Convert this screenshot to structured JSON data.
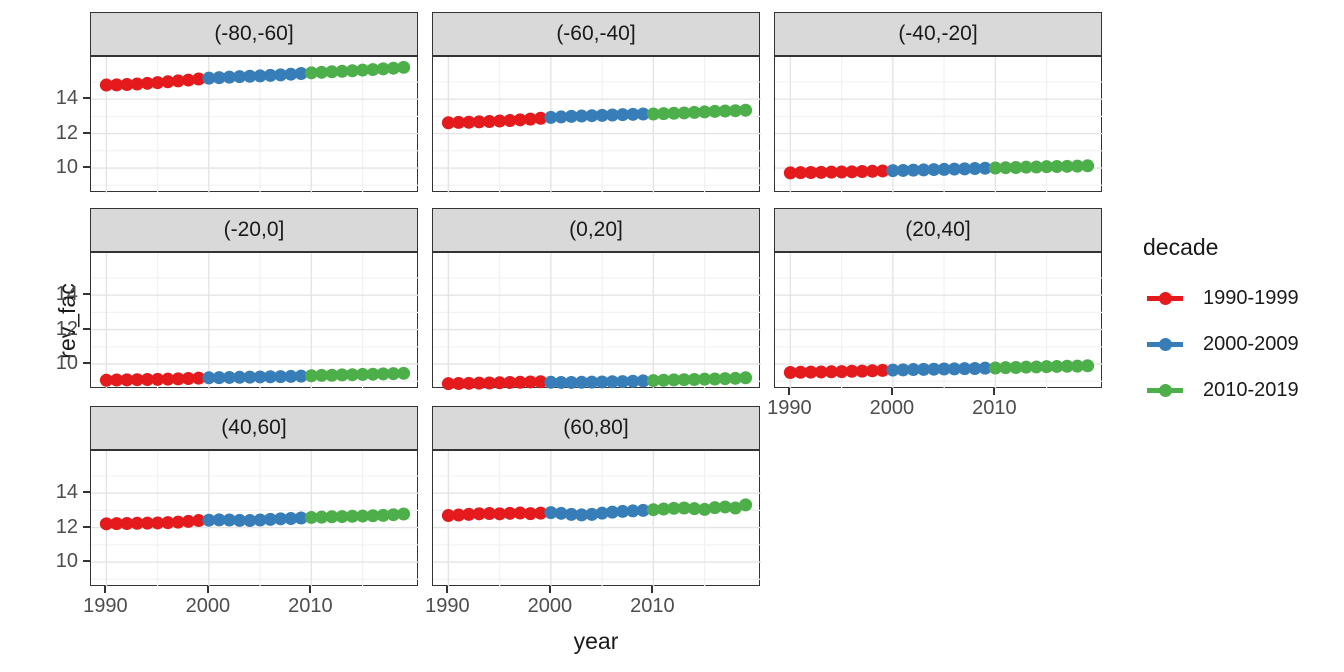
{
  "chart": {
    "y_axis_title": "rev_fac",
    "x_axis_title": "year",
    "legend": {
      "title": "decade",
      "entries": [
        {
          "label": "1990-1999",
          "color": "#E41A1C"
        },
        {
          "label": "2000-2009",
          "color": "#377EB8"
        },
        {
          "label": "2010-2019",
          "color": "#4DAF4A"
        }
      ]
    }
  },
  "chart_data": {
    "type": "scatter",
    "title": "",
    "xlabel": "year",
    "ylabel": "rev_fac",
    "legend_title": "decade",
    "legend_position": "right",
    "grid": true,
    "facet_layout": {
      "ncol": 3,
      "nrow": 3
    },
    "x": [
      1990,
      1991,
      1992,
      1993,
      1994,
      1995,
      1996,
      1997,
      1998,
      1999,
      2000,
      2001,
      2002,
      2003,
      2004,
      2005,
      2006,
      2007,
      2008,
      2009,
      2010,
      2011,
      2012,
      2013,
      2014,
      2015,
      2016,
      2017,
      2018,
      2019
    ],
    "xlim": [
      1988.5,
      2020.5
    ],
    "ylim": [
      8.55,
      16.45
    ],
    "x_ticks": [
      1990,
      2000,
      2010
    ],
    "y_ticks": [
      14,
      12,
      10
    ],
    "x_minor_grid": [
      1995,
      2005,
      2015
    ],
    "y_major_grid": [
      10,
      12,
      14
    ],
    "y_minor_grid": [
      9,
      11,
      13,
      15
    ],
    "series": [
      {
        "name": "1990-1999",
        "start": 1990,
        "end": 1999,
        "color": "#E41A1C"
      },
      {
        "name": "2000-2009",
        "start": 2000,
        "end": 2009,
        "color": "#377EB8"
      },
      {
        "name": "2010-2019",
        "start": 2010,
        "end": 2019,
        "color": "#4DAF4A"
      }
    ],
    "facets": [
      {
        "label": "(-80,-60]",
        "y": [
          14.82,
          14.83,
          14.85,
          14.88,
          14.92,
          14.96,
          15.01,
          15.06,
          15.11,
          15.17,
          15.22,
          15.25,
          15.28,
          15.31,
          15.33,
          15.35,
          15.38,
          15.41,
          15.45,
          15.49,
          15.53,
          15.56,
          15.59,
          15.62,
          15.65,
          15.69,
          15.72,
          15.76,
          15.8,
          15.85
        ]
      },
      {
        "label": "(-60,-40]",
        "y": [
          12.63,
          12.65,
          12.66,
          12.68,
          12.7,
          12.73,
          12.76,
          12.8,
          12.84,
          12.89,
          12.94,
          12.97,
          13.0,
          13.02,
          13.04,
          13.06,
          13.08,
          13.1,
          13.12,
          13.14,
          13.14,
          13.16,
          13.18,
          13.2,
          13.23,
          13.26,
          13.29,
          13.31,
          13.33,
          13.36
        ]
      },
      {
        "label": "(-40,-20]",
        "y": [
          9.72,
          9.73,
          9.74,
          9.75,
          9.76,
          9.77,
          9.78,
          9.8,
          9.81,
          9.83,
          9.85,
          9.86,
          9.88,
          9.89,
          9.91,
          9.92,
          9.94,
          9.95,
          9.97,
          9.99,
          10.0,
          10.02,
          10.03,
          10.05,
          10.06,
          10.08,
          10.09,
          10.1,
          10.11,
          10.13
        ]
      },
      {
        "label": "(-20,0]",
        "y": [
          9.06,
          9.07,
          9.08,
          9.09,
          9.1,
          9.11,
          9.12,
          9.14,
          9.16,
          9.18,
          9.2,
          9.21,
          9.22,
          9.23,
          9.24,
          9.25,
          9.26,
          9.27,
          9.28,
          9.3,
          9.32,
          9.34,
          9.35,
          9.37,
          9.38,
          9.4,
          9.41,
          9.43,
          9.44,
          9.46
        ]
      },
      {
        "label": "(0,20]",
        "y": [
          8.86,
          8.87,
          8.88,
          8.89,
          8.9,
          8.91,
          8.93,
          8.94,
          8.96,
          8.97,
          8.94,
          8.93,
          8.93,
          8.94,
          8.95,
          8.96,
          8.97,
          8.98,
          9.0,
          9.02,
          9.04,
          9.06,
          9.08,
          9.09,
          9.1,
          9.12,
          9.13,
          9.15,
          9.17,
          9.2
        ]
      },
      {
        "label": "(20,40]",
        "y": [
          9.51,
          9.52,
          9.53,
          9.54,
          9.55,
          9.56,
          9.58,
          9.59,
          9.61,
          9.63,
          9.65,
          9.66,
          9.68,
          9.69,
          9.7,
          9.71,
          9.72,
          9.73,
          9.74,
          9.76,
          9.77,
          9.79,
          9.8,
          9.82,
          9.83,
          9.85,
          9.86,
          9.87,
          9.88,
          9.9
        ]
      },
      {
        "label": "(40,60]",
        "y": [
          12.22,
          12.23,
          12.24,
          12.25,
          12.26,
          12.27,
          12.29,
          12.32,
          12.36,
          12.41,
          12.43,
          12.45,
          12.44,
          12.42,
          12.41,
          12.44,
          12.48,
          12.51,
          12.53,
          12.56,
          12.59,
          12.61,
          12.63,
          12.64,
          12.66,
          12.67,
          12.69,
          12.71,
          12.75,
          12.79
        ]
      },
      {
        "label": "(60,80]",
        "y": [
          12.7,
          12.73,
          12.77,
          12.8,
          12.82,
          12.8,
          12.83,
          12.85,
          12.81,
          12.84,
          12.87,
          12.83,
          12.77,
          12.74,
          12.77,
          12.84,
          12.9,
          12.94,
          12.97,
          13.0,
          13.04,
          13.08,
          13.12,
          13.14,
          13.1,
          13.06,
          13.16,
          13.2,
          13.14,
          13.32
        ]
      }
    ],
    "colors": {
      "major_grid": "#E4E4E4",
      "minor_grid": "#F2F2F2",
      "strip_fill": "#D9D9D9",
      "panel_border": "#333333",
      "axis_text": "#4D4D4D"
    }
  }
}
